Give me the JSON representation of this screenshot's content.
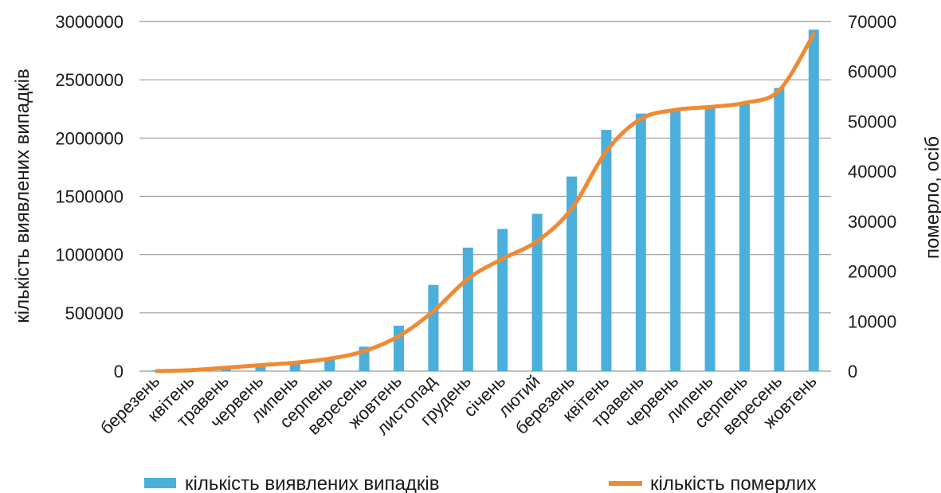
{
  "chart_data": {
    "type": "bar+line",
    "categories": [
      "березень",
      "квітень",
      "травень",
      "червень",
      "липень",
      "серпень",
      "вересень",
      "жовтень",
      "листопад",
      "грудень",
      "січень",
      "лютий",
      "березень",
      "квітень",
      "травень",
      "червень",
      "липень",
      "серпень",
      "вересень",
      "жовтень"
    ],
    "series": [
      {
        "name": "кількість виявлених випадків",
        "type": "bar",
        "axis": "left",
        "color": "#4bafdc",
        "values": [
          8000,
          10000,
          25000,
          60000,
          80000,
          110000,
          210000,
          390000,
          740000,
          1060000,
          1220000,
          1350000,
          1670000,
          2070000,
          2210000,
          2240000,
          2270000,
          2290000,
          2430000,
          2930000
        ]
      },
      {
        "name": "кількість померлих",
        "type": "line",
        "axis": "right",
        "color": "#f08a32",
        "values": [
          0,
          200,
          700,
          1200,
          1700,
          2500,
          4000,
          7000,
          12000,
          18500,
          22500,
          26000,
          32500,
          44000,
          50500,
          52300,
          52900,
          53700,
          56200,
          67500
        ]
      }
    ],
    "ylabel": "кількість виявлених випадків",
    "y2label": "померло, осіб",
    "ylim": [
      0,
      3000000
    ],
    "y2lim": [
      0,
      70000
    ],
    "yticks": [
      "0",
      "500000",
      "1000000",
      "1500000",
      "2000000",
      "2500000",
      "3000000"
    ],
    "y2ticks": [
      "0",
      "10000",
      "20000",
      "30000",
      "40000",
      "50000",
      "60000",
      "70000"
    ],
    "grid": true,
    "legend": "bottom"
  }
}
